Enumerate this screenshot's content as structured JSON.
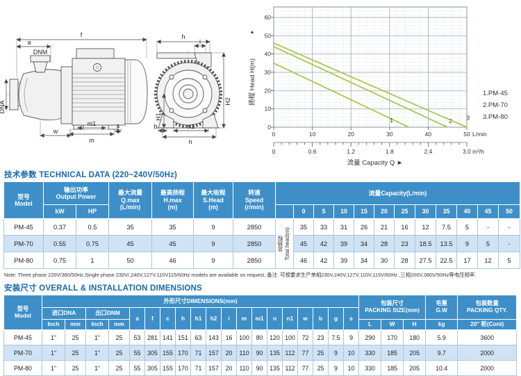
{
  "colors": {
    "header_blue": "#3e8fc8",
    "row_alt_blue": "#cfe3f4",
    "title_blue": "#1668ad",
    "curve_green": "#a9c74e",
    "grid_gray": "#9aa4ab"
  },
  "drawing": {
    "side": {
      "f": "f",
      "a": "a",
      "dnm": "DNM",
      "dna": "DNA",
      "w": "w",
      "m1": "m1",
      "m": "m",
      "s": "s"
    },
    "front": {
      "h": "h",
      "i": "i",
      "h2": "H2",
      "h1": "H1",
      "b": "b",
      "n1": "n1",
      "n": "n"
    }
  },
  "chart_data": {
    "type": "line",
    "ylabel": "扬程 Head H(m)",
    "ylabel_arrow": "▲",
    "xlabel": "流量 Capacity Q ►",
    "ylim": [
      0,
      65
    ],
    "xlim_lmin": [
      0,
      50
    ],
    "xlim_m3h": [
      0,
      3.0
    ],
    "grid": "major solid, fine dotted minor",
    "legend_position": "right",
    "line_color": "#a9c74e",
    "y_ticks": [
      "0",
      "10",
      "20",
      "30",
      "40",
      "50",
      "60"
    ],
    "x_ticks": [
      "0",
      "10",
      "20",
      "30",
      "40",
      "50"
    ],
    "x_unit1": "L/min",
    "x2_ticks": [
      "0",
      "0.6",
      "1.2",
      "1.8",
      "2.4",
      "3.0"
    ],
    "x_unit2": "m³/h",
    "legend": [
      "1.PM-45",
      "2.PM-70",
      "3.PM-80"
    ],
    "series": [
      {
        "name": "PM-45",
        "marker": "1",
        "points": [
          [
            0,
            35
          ],
          [
            35,
            0
          ]
        ],
        "label_pos": [
          30.5,
          2.6
        ]
      },
      {
        "name": "PM-70",
        "marker": "2",
        "points": [
          [
            0,
            44
          ],
          [
            45,
            0
          ]
        ],
        "label_pos": [
          45.8,
          2.2
        ]
      },
      {
        "name": "PM-80",
        "marker": "3",
        "points": [
          [
            0,
            46
          ],
          [
            50,
            0
          ]
        ],
        "label_pos": [
          50.3,
          4.0
        ]
      }
    ]
  },
  "table1": {
    "title": "技术参数 TECHNICAL DATA (220~240V/50Hz)",
    "header": {
      "model": "型号\nModel",
      "power": "输出功率\nOutput Power",
      "kw": "kW",
      "hp": "HP",
      "qmax": "最大流量\nQ.max\n(L/min)",
      "hmax": "最高扬程\nH.max\n(m)",
      "shead": "最大吸程\nS.Head\n(m)",
      "speed": "转速\nSpeed\n(r/min)",
      "capacity": "流量Capacity(L/min)",
      "capacity_cols": [
        "0",
        "5",
        "10",
        "15",
        "20",
        "25",
        "30",
        "35",
        "40",
        "45",
        "50"
      ],
      "total_head": "总扬程\nTotal head(m)"
    },
    "rows": [
      {
        "cells": [
          "PM-45",
          "0.37",
          "0.5",
          "35",
          "35",
          "9",
          "2850",
          "35",
          "33",
          "31",
          "26",
          "21",
          "16",
          "12",
          "7.5",
          "5",
          "-",
          "-"
        ]
      },
      {
        "cells": [
          "PM-70",
          "0.55",
          "0.75",
          "45",
          "45",
          "9",
          "2850",
          "45",
          "42",
          "39",
          "34",
          "28",
          "23",
          "18.5",
          "13.5",
          "9",
          "5",
          "-"
        ]
      },
      {
        "cells": [
          "PM-80",
          "0.75",
          "1",
          "50",
          "46",
          "9",
          "2850",
          "46",
          "42",
          "39",
          "34",
          "30",
          "28",
          "27.5",
          "22.5",
          "17",
          "12",
          "5"
        ]
      }
    ],
    "note": "Note: Three phase 220V/380/50Hz,Single phase 230V/,240V,127V,110V115/60Hz models are available on request, 备注: 可按要求生产单相230V,240V,127V,110V,115V/60Hz ,三相200V,380V/50Hz等电压频率."
  },
  "table2": {
    "title": "安装尺寸 OVERALL & INSTALLATION DIMENSIONS",
    "header": {
      "model": "型号\nModel",
      "dimensions": "外形尺寸DIMENSIONS(mm)",
      "inlet": "进口DNA",
      "outlet": "出口DNM",
      "inch": "Inch",
      "mm": "mm",
      "dim_cols": [
        "a",
        "f",
        "c",
        "h",
        "h1",
        "h2",
        "i",
        "m",
        "m1",
        "n",
        "n1",
        "w",
        "b",
        "g",
        "s"
      ],
      "packing_size": "包装尺寸\nPACKING SIZE(mm)",
      "packing_cols": [
        "L",
        "W",
        "H"
      ],
      "gw": "毛重\nG.W",
      "gw_unit": "kg",
      "qty": "包装数量\nPACKING QTY.",
      "qty_unit": "20\" 柜(Cont)"
    },
    "rows": [
      {
        "cells": [
          "PM-45",
          "1\"",
          "25",
          "1\"",
          "25",
          "53",
          "281",
          "141",
          "151",
          "63",
          "143",
          "16",
          "100",
          "80",
          "120",
          "100",
          "72",
          "23",
          "7.5",
          "9",
          "290",
          "170",
          "180",
          "5.9",
          "3600"
        ]
      },
      {
        "cells": [
          "PM-70",
          "1\"",
          "25",
          "1\"",
          "25",
          "55",
          "305",
          "155",
          "170",
          "71",
          "157",
          "20",
          "110",
          "90",
          "135",
          "112",
          "77",
          "25",
          "9",
          "10",
          "330",
          "185",
          "205",
          "9.7",
          "2000"
        ]
      },
      {
        "cells": [
          "PM-80",
          "1\"",
          "25",
          "1\"",
          "25",
          "55",
          "305",
          "155",
          "170",
          "71",
          "157",
          "20",
          "110",
          "90",
          "135",
          "112",
          "77",
          "25",
          "9",
          "10",
          "330",
          "185",
          "205",
          "10.4",
          "2000"
        ]
      }
    ]
  }
}
